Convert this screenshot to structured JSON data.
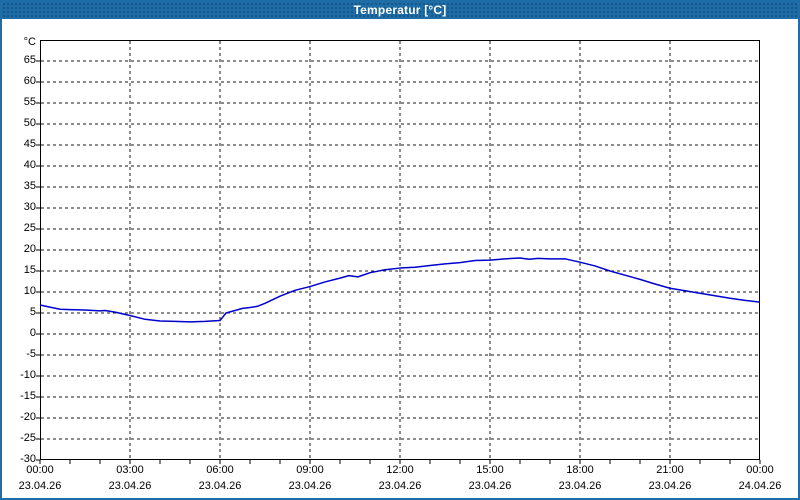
{
  "window": {
    "title": "Temperatur [°C]"
  },
  "colors": {
    "frame": "#1e6da6",
    "title_text": "#ffffff",
    "background": "#ffffff",
    "plot_border": "#000000",
    "grid": "#1a1a1a",
    "line": "#0000cc",
    "text": "#000000"
  },
  "chart_data": {
    "type": "line",
    "title": "Temperatur [°C]",
    "xlabel": "",
    "ylabel": "°C",
    "grid": "dashed, on both axes",
    "legend": "none",
    "y_axis": {
      "unit": "°C",
      "min": -30,
      "max": 70,
      "label_step": 5,
      "label_min": -30,
      "label_max": 65
    },
    "x_axis": {
      "hours_total": 24,
      "minor_tick_every_hours": 1,
      "major_every_hours": 3,
      "labels": [
        {
          "hour": 0,
          "time": "00:00",
          "date": "23.04.26"
        },
        {
          "hour": 3,
          "time": "03:00",
          "date": "23.04.26"
        },
        {
          "hour": 6,
          "time": "06:00",
          "date": "23.04.26"
        },
        {
          "hour": 9,
          "time": "09:00",
          "date": "23.04.26"
        },
        {
          "hour": 12,
          "time": "12:00",
          "date": "23.04.26"
        },
        {
          "hour": 15,
          "time": "15:00",
          "date": "23.04.26"
        },
        {
          "hour": 18,
          "time": "18:00",
          "date": "23.04.26"
        },
        {
          "hour": 21,
          "time": "21:00",
          "date": "23.04.26"
        },
        {
          "hour": 24,
          "time": "00:00",
          "date": "24.04.26"
        }
      ]
    },
    "series": [
      {
        "name": "Temperatur",
        "color": "#0000cc",
        "x_hours": [
          0,
          0.33,
          0.67,
          1,
          1.5,
          2,
          2.17,
          2.5,
          3,
          3.5,
          4,
          4.5,
          5,
          5.5,
          6,
          6.2,
          6.5,
          6.75,
          7,
          7.25,
          7.5,
          8,
          8.5,
          9,
          9.5,
          10,
          10.3,
          10.6,
          11,
          11.5,
          12,
          12.5,
          13,
          13.5,
          14,
          14.5,
          15,
          15.5,
          16,
          16.3,
          16.6,
          17,
          17.5,
          18,
          18.5,
          19,
          19.5,
          20,
          20.5,
          21,
          21.5,
          22,
          22.5,
          23,
          23.5,
          24
        ],
        "values": [
          6.9,
          6.4,
          5.9,
          5.8,
          5.7,
          5.5,
          5.6,
          5.2,
          4.4,
          3.5,
          3.1,
          3.0,
          2.9,
          3.0,
          3.2,
          5.0,
          5.6,
          6.1,
          6.3,
          6.6,
          7.3,
          9.0,
          10.4,
          11.3,
          12.4,
          13.3,
          13.9,
          13.6,
          14.6,
          15.3,
          15.7,
          15.9,
          16.3,
          16.7,
          17.0,
          17.5,
          17.6,
          17.9,
          18.1,
          17.8,
          18.0,
          17.9,
          17.9,
          17.1,
          16.2,
          15.0,
          14.0,
          13.0,
          11.9,
          10.9,
          10.3,
          9.7,
          9.1,
          8.5,
          8.0,
          7.6
        ]
      }
    ]
  }
}
